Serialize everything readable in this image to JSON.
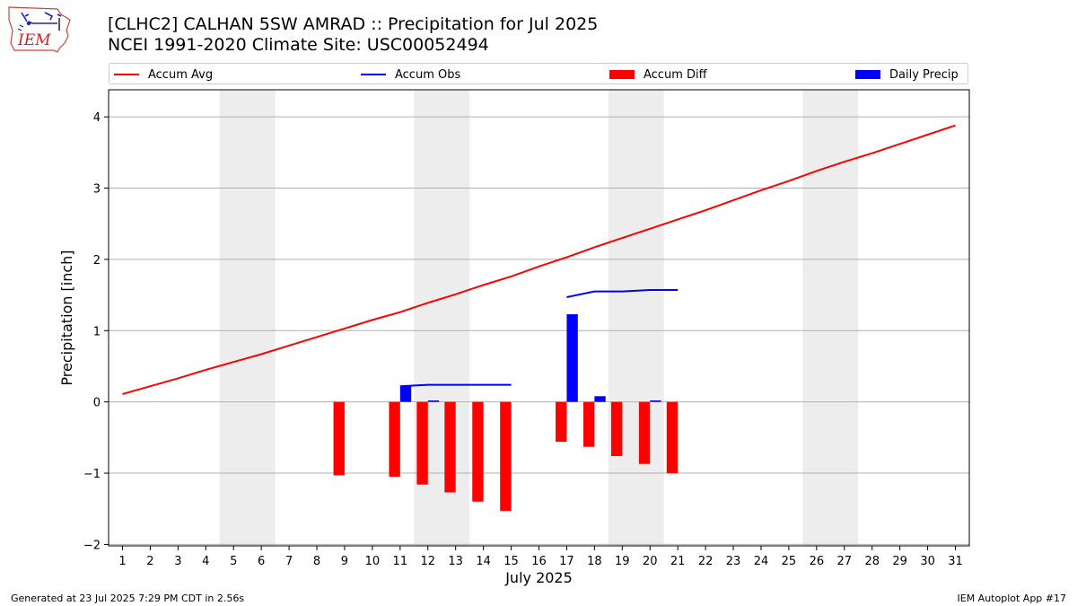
{
  "header": {
    "title_line1": "[CLHC2] CALHAN 5SW AMRAD :: Precipitation for Jul 2025",
    "title_line2": "NCEI 1991-2020 Climate Site: USC00052494",
    "logo_text": "IEM"
  },
  "legend": {
    "placement": "top",
    "items": [
      {
        "label": "Accum Avg",
        "kind": "line",
        "color": "#ff0000"
      },
      {
        "label": "Accum Obs",
        "kind": "line",
        "color": "#0000ff"
      },
      {
        "label": "Accum Diff",
        "kind": "bar",
        "color": "#ff0000"
      },
      {
        "label": "Daily Precip",
        "kind": "bar",
        "color": "#0000ff"
      }
    ]
  },
  "footer": {
    "left": "Generated at 23 Jul 2025 7:29 PM CDT in 2.56s",
    "right": "IEM Autoplot App #17"
  },
  "colors": {
    "avg": "#ff0000",
    "obs": "#0000ff",
    "diff": "#ff0000",
    "daily": "#0000ff",
    "weekend_shade": "#ededed",
    "grid": "#b0b0b0"
  },
  "chart_data": {
    "type": "bar",
    "title": "[CLHC2] CALHAN 5SW AMRAD :: Precipitation for Jul 2025",
    "subtitle": "NCEI 1991-2020 Climate Site: USC00052494",
    "xlabel": "July 2025",
    "ylabel": "Precipitation [inch]",
    "xlim": [
      0.5,
      31.5
    ],
    "ylim": [
      -2.02,
      4.38
    ],
    "grid": "y",
    "x_ticks": [
      1,
      2,
      3,
      4,
      5,
      6,
      7,
      8,
      9,
      10,
      11,
      12,
      13,
      14,
      15,
      16,
      17,
      18,
      19,
      20,
      21,
      22,
      23,
      24,
      25,
      26,
      27,
      28,
      29,
      30,
      31
    ],
    "y_ticks": [
      -2,
      -1,
      0,
      1,
      2,
      3,
      4
    ],
    "y_tick_labels": [
      "−2",
      "−1",
      "0",
      "1",
      "2",
      "3",
      "4"
    ],
    "weekend_bands": [
      [
        4.5,
        6.5
      ],
      [
        11.5,
        13.5
      ],
      [
        18.5,
        20.5
      ],
      [
        25.5,
        27.5
      ]
    ],
    "series": [
      {
        "name": "Accum Avg",
        "kind": "line",
        "days": [
          1,
          2,
          3,
          4,
          5,
          6,
          7,
          8,
          9,
          10,
          11,
          12,
          13,
          14,
          15,
          16,
          17,
          18,
          19,
          20,
          21,
          22,
          23,
          24,
          25,
          26,
          27,
          28,
          29,
          30,
          31
        ],
        "values": [
          0.11,
          0.22,
          0.33,
          0.45,
          0.56,
          0.67,
          0.79,
          0.91,
          1.03,
          1.15,
          1.26,
          1.39,
          1.51,
          1.64,
          1.76,
          1.9,
          2.03,
          2.17,
          2.3,
          2.43,
          2.56,
          2.69,
          2.83,
          2.97,
          3.1,
          3.24,
          3.37,
          3.49,
          3.62,
          3.75,
          3.88
        ]
      },
      {
        "name": "Accum Obs",
        "kind": "line",
        "segments": [
          {
            "days": [
              11,
              12,
              13,
              14,
              15
            ],
            "values": [
              0.22,
              0.24,
              0.24,
              0.24,
              0.24
            ]
          },
          {
            "days": [
              17,
              18,
              19,
              20,
              21
            ],
            "values": [
              1.47,
              1.55,
              1.55,
              1.57,
              1.57
            ]
          }
        ]
      },
      {
        "name": "Accum Diff",
        "kind": "bar",
        "days": [
          9,
          11,
          12,
          13,
          14,
          15,
          17,
          18,
          19,
          20,
          21
        ],
        "values": [
          -1.03,
          -1.05,
          -1.16,
          -1.27,
          -1.4,
          -1.53,
          -0.56,
          -0.63,
          -0.76,
          -0.87,
          -1.0
        ]
      },
      {
        "name": "Daily Precip",
        "kind": "bar",
        "days": [
          11,
          12,
          17,
          18,
          20
        ],
        "values": [
          0.22,
          0.02,
          1.23,
          0.08,
          0.02
        ]
      }
    ]
  }
}
